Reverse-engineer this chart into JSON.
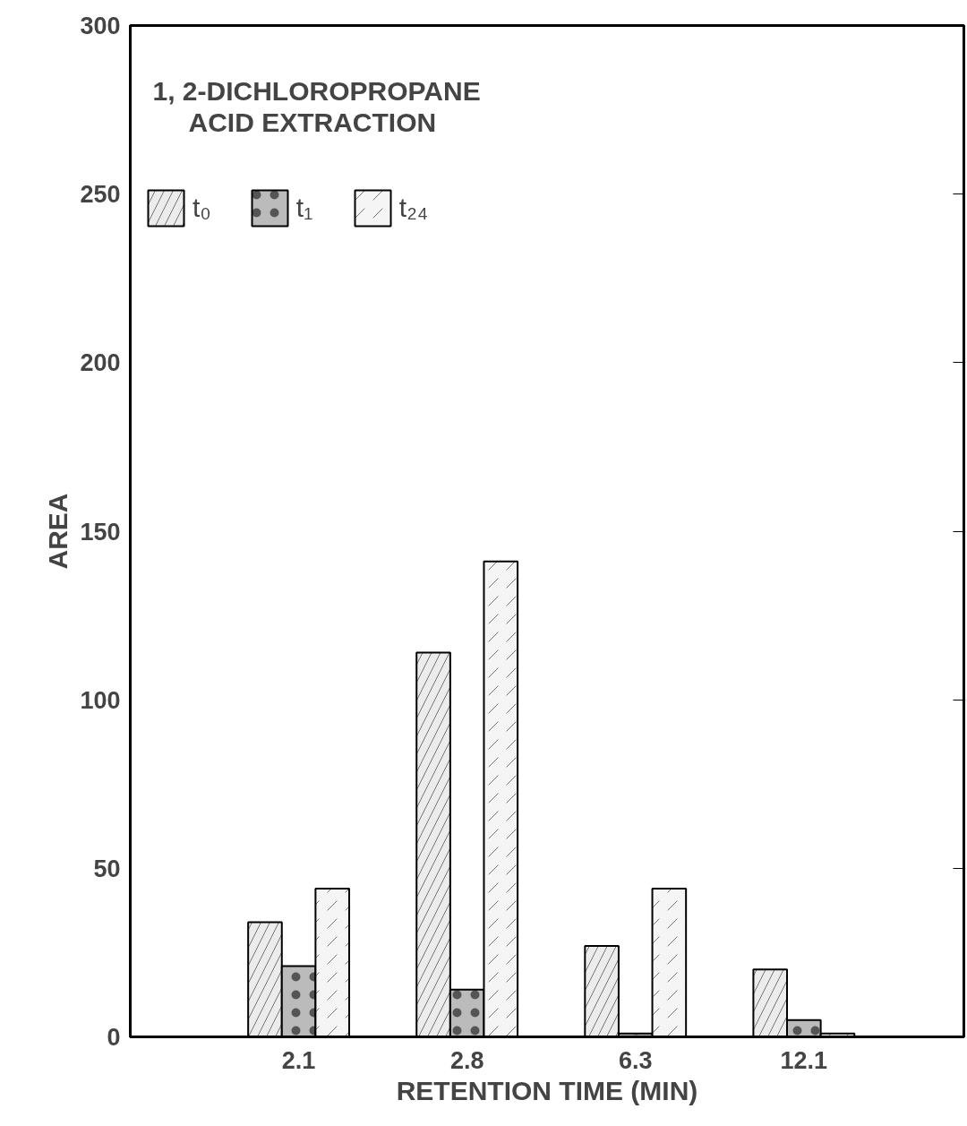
{
  "chart_data": {
    "type": "bar",
    "title": "1, 2-DICHLOROPROPANE",
    "subtitle": "ACID EXTRACTION",
    "xlabel": "RETENTION TIME (MIN)",
    "ylabel": "AREA",
    "categories": [
      "2.1",
      "2.8",
      "6.3",
      "12.1"
    ],
    "series": [
      {
        "name": "t₀",
        "color": "#ececec",
        "values": [
          34,
          114,
          27,
          20
        ]
      },
      {
        "name": "t₁",
        "color": "#bbbbbb",
        "values": [
          21,
          14,
          1,
          5
        ]
      },
      {
        "name": "t₂₄",
        "color": "#f5f5f5",
        "values": [
          44,
          141,
          44,
          1
        ]
      }
    ],
    "ylim": [
      0,
      300
    ],
    "yticks": [
      0,
      50,
      100,
      150,
      200,
      250,
      300
    ],
    "legend": "top left"
  }
}
